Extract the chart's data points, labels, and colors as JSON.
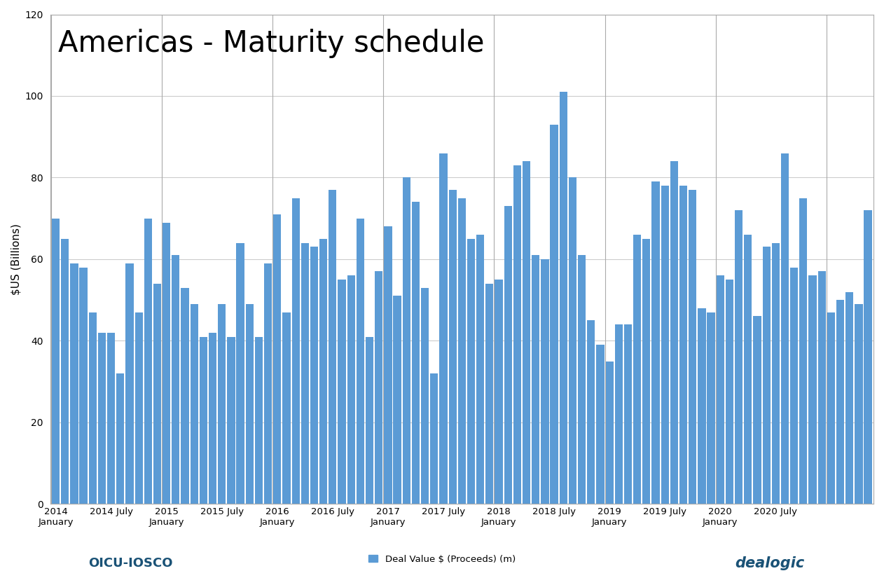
{
  "title": "Americas - Maturity schedule",
  "ylabel": "$US (Billions)",
  "legend_label": "Deal Value $ (Proceeds) (m)",
  "bar_color": "#5B9BD5",
  "ylim": [
    0,
    120
  ],
  "yticks": [
    0,
    20,
    40,
    60,
    80,
    100,
    120
  ],
  "background_color": "#FFFFFF",
  "title_fontsize": 30,
  "ylabel_fontsize": 11,
  "values": [
    70,
    65,
    59,
    58,
    47,
    42,
    42,
    32,
    59,
    47,
    70,
    54,
    69,
    61,
    53,
    49,
    41,
    42,
    49,
    41,
    64,
    49,
    41,
    59,
    71,
    47,
    75,
    64,
    63,
    65,
    77,
    55,
    56,
    70,
    41,
    57,
    68,
    51,
    80,
    74,
    53,
    32,
    86,
    77,
    75,
    65,
    66,
    54,
    55,
    73,
    83,
    84,
    61,
    60,
    93,
    101,
    80,
    61,
    45,
    39,
    35,
    44,
    44,
    66,
    65,
    79,
    78,
    84,
    78,
    77,
    48,
    47,
    56,
    55,
    72,
    66,
    46,
    63,
    64,
    86,
    58,
    75,
    56,
    57,
    47,
    50,
    52,
    49,
    72
  ],
  "jan_tick_positions": [
    0,
    12,
    24,
    36,
    48,
    60,
    72
  ],
  "jul_tick_positions": [
    6,
    18,
    30,
    42,
    54,
    66,
    78
  ],
  "jan_tick_labels_line1": [
    "2014",
    "2015",
    "2016",
    "2017",
    "2018",
    "2019",
    "2020"
  ],
  "jan_tick_labels_line2": [
    "January",
    "January",
    "January",
    "January",
    "January",
    "January",
    "January"
  ],
  "jul_tick_labels_line1": [
    "2014 July",
    "2015 July",
    "2016 July",
    "2017 July",
    "2018 July",
    "2019 July",
    "2020 July"
  ],
  "vgrid_positions": [
    0,
    12,
    24,
    36,
    48,
    60,
    72,
    84
  ],
  "grid_color": "#CCCCCC",
  "vgrid_color": "#AAAAAA",
  "border_color": "#AAAAAA"
}
